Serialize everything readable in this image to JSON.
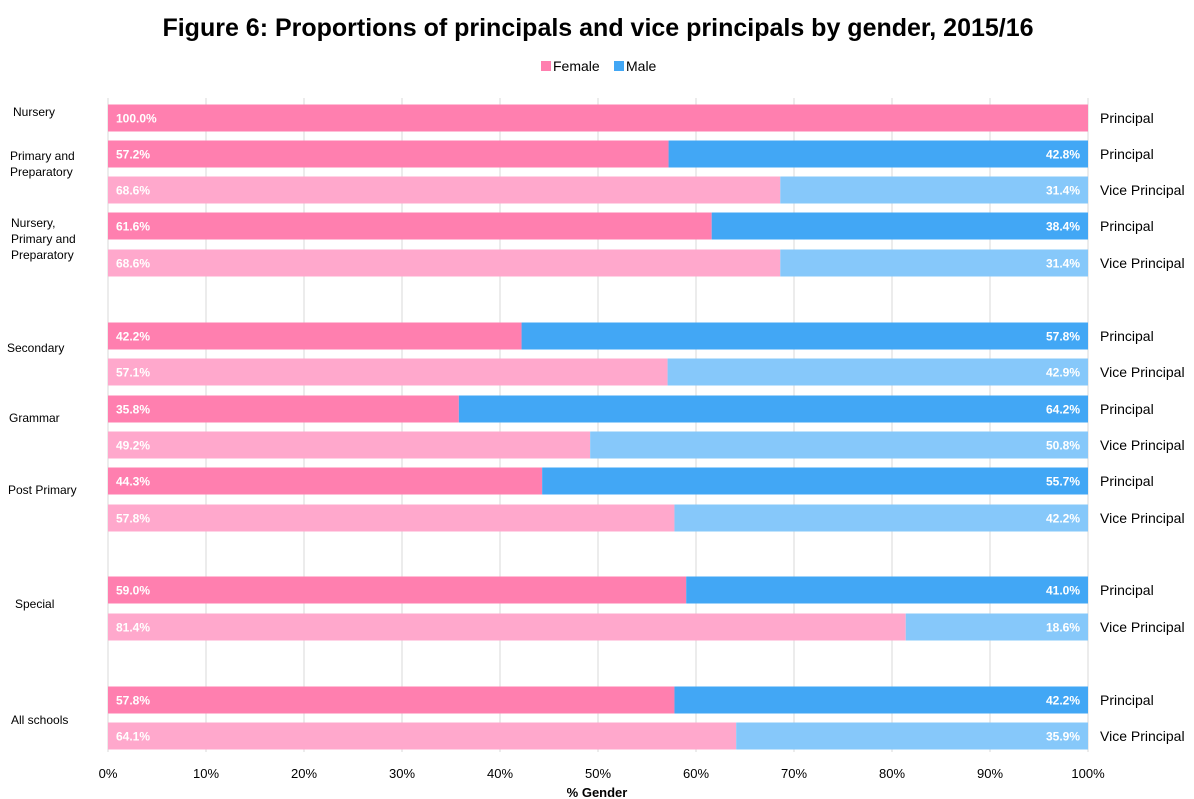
{
  "chart_data": {
    "type": "bar",
    "orientation": "horizontal",
    "stacked": true,
    "title": "Figure 6: Proportions of principals and vice principals by gender, 2015/16",
    "xlabel": "% Gender",
    "xlim": [
      0,
      100
    ],
    "x_ticks": [
      "0%",
      "10%",
      "20%",
      "30%",
      "40%",
      "50%",
      "60%",
      "70%",
      "80%",
      "90%",
      "100%"
    ],
    "grid": true,
    "legend": {
      "placement": "top-center",
      "entries": [
        "Female",
        "Male"
      ]
    },
    "colors": {
      "female_principal": "#FF7FAF",
      "female_vice": "#FFA8CC",
      "male_principal": "#42A7F5",
      "male_vice": "#86C8FA",
      "legend_female": "#FF7FAF",
      "legend_male": "#42A7F5"
    },
    "rows": [
      {
        "group": "Nursery",
        "role": "Principal",
        "female": 100.0,
        "male": 0,
        "female_label": "100.0%",
        "male_label": ""
      },
      {
        "group": "Primary and Preparatory",
        "role": "Principal",
        "female": 57.2,
        "male": 42.8,
        "female_label": "57.2%",
        "male_label": "42.8%"
      },
      {
        "group": "Primary and Preparatory",
        "role": "Vice Principal",
        "female": 68.6,
        "male": 31.4,
        "female_label": "68.6%",
        "male_label": "31.4%"
      },
      {
        "group": "Nursery, Primary and Preparatory",
        "role": "Principal",
        "female": 61.6,
        "male": 38.4,
        "female_label": "61.6%",
        "male_label": "38.4%"
      },
      {
        "group": "Nursery, Primary and Preparatory",
        "role": "Vice Principal",
        "female": 68.6,
        "male": 31.4,
        "female_label": "68.6%",
        "male_label": "31.4%"
      },
      {
        "group": "Secondary",
        "role": "Principal",
        "female": 42.2,
        "male": 57.8,
        "female_label": "42.2%",
        "male_label": "57.8%"
      },
      {
        "group": "Secondary",
        "role": "Vice Principal",
        "female": 57.1,
        "male": 42.9,
        "female_label": "57.1%",
        "male_label": "42.9%"
      },
      {
        "group": "Grammar",
        "role": "Principal",
        "female": 35.8,
        "male": 64.2,
        "female_label": "35.8%",
        "male_label": "64.2%"
      },
      {
        "group": "Grammar",
        "role": "Vice Principal",
        "female": 49.2,
        "male": 50.8,
        "female_label": "49.2%",
        "male_label": "50.8%"
      },
      {
        "group": "Post Primary",
        "role": "Principal",
        "female": 44.3,
        "male": 55.7,
        "female_label": "44.3%",
        "male_label": "55.7%"
      },
      {
        "group": "Post Primary",
        "role": "Vice Principal",
        "female": 57.8,
        "male": 42.2,
        "female_label": "57.8%",
        "male_label": "42.2%"
      },
      {
        "group": "Special",
        "role": "Principal",
        "female": 59.0,
        "male": 41.0,
        "female_label": "59.0%",
        "male_label": "41.0%"
      },
      {
        "group": "Special",
        "role": "Vice Principal",
        "female": 81.4,
        "male": 18.6,
        "female_label": "81.4%",
        "male_label": "18.6%"
      },
      {
        "group": "All schools",
        "role": "Principal",
        "female": 57.8,
        "male": 42.2,
        "female_label": "57.8%",
        "male_label": "42.2%"
      },
      {
        "group": "All schools",
        "role": "Vice Principal",
        "female": 64.1,
        "male": 35.9,
        "female_label": "64.1%",
        "male_label": "35.9%"
      }
    ],
    "group_labels": [
      {
        "lines": [
          "Nursery"
        ]
      },
      {
        "lines": [
          "Primary and",
          "Preparatory"
        ]
      },
      {
        "lines": [
          "Nursery,",
          "Primary and",
          "Preparatory"
        ]
      },
      {
        "lines": [
          "Secondary"
        ]
      },
      {
        "lines": [
          "Grammar"
        ]
      },
      {
        "lines": [
          "Post Primary"
        ]
      },
      {
        "lines": [
          "Special"
        ]
      },
      {
        "lines": [
          "All schools"
        ]
      }
    ]
  }
}
